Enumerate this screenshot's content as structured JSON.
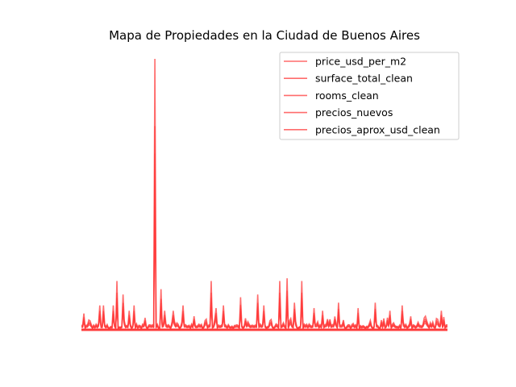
{
  "chart_data": {
    "type": "line",
    "title": "Mapa de Propiedades en la Ciudad de Buenos Aires",
    "xlabel": "",
    "ylabel": "",
    "axes_visible": false,
    "grid": false,
    "legend_position": "top-right",
    "line_color": "#ff3b3b",
    "line_alpha": 0.75,
    "series": [
      {
        "name": "price_usd_per_m2"
      },
      {
        "name": "surface_total_clean"
      },
      {
        "name": "rooms_clean"
      },
      {
        "name": "precios_nuevos"
      },
      {
        "name": "precios_aprox_usd_clean"
      }
    ],
    "n_points": 300,
    "ylim": [
      0,
      100
    ],
    "peaks": [
      {
        "x": 2,
        "y": 6
      },
      {
        "x": 15,
        "y": 9
      },
      {
        "x": 18,
        "y": 9
      },
      {
        "x": 26,
        "y": 9
      },
      {
        "x": 29,
        "y": 18
      },
      {
        "x": 34,
        "y": 13
      },
      {
        "x": 39,
        "y": 7
      },
      {
        "x": 43,
        "y": 9
      },
      {
        "x": 60,
        "y": 100
      },
      {
        "x": 65,
        "y": 15
      },
      {
        "x": 68,
        "y": 7
      },
      {
        "x": 75,
        "y": 7
      },
      {
        "x": 83,
        "y": 9
      },
      {
        "x": 92,
        "y": 5
      },
      {
        "x": 106,
        "y": 18
      },
      {
        "x": 110,
        "y": 8
      },
      {
        "x": 116,
        "y": 9
      },
      {
        "x": 130,
        "y": 12
      },
      {
        "x": 144,
        "y": 13
      },
      {
        "x": 149,
        "y": 9
      },
      {
        "x": 162,
        "y": 18
      },
      {
        "x": 168,
        "y": 19
      },
      {
        "x": 174,
        "y": 10
      },
      {
        "x": 180,
        "y": 18
      },
      {
        "x": 190,
        "y": 8
      },
      {
        "x": 197,
        "y": 7
      },
      {
        "x": 210,
        "y": 10
      },
      {
        "x": 226,
        "y": 8
      },
      {
        "x": 240,
        "y": 10
      },
      {
        "x": 252,
        "y": 7
      },
      {
        "x": 262,
        "y": 9
      },
      {
        "x": 281,
        "y": 5
      },
      {
        "x": 294,
        "y": 7
      }
    ]
  }
}
